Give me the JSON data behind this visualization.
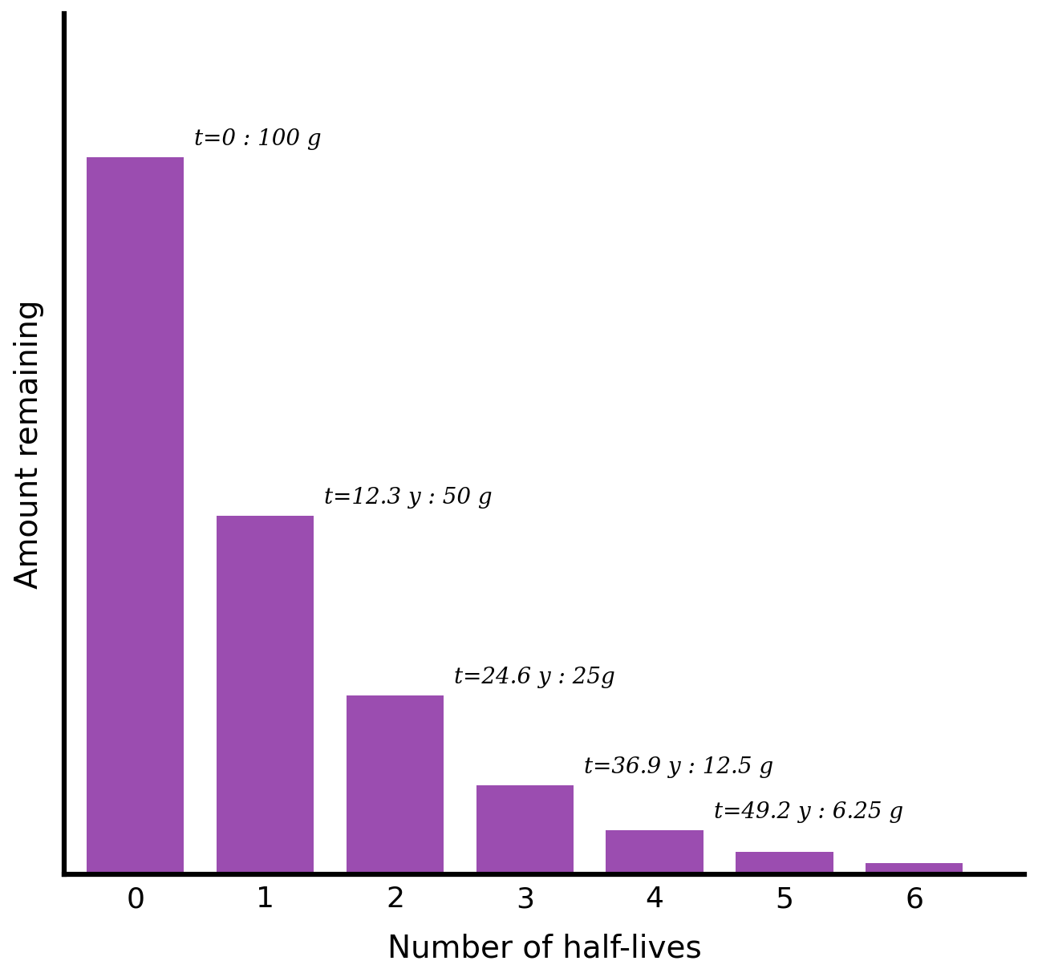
{
  "categories": [
    0,
    1,
    2,
    3,
    4,
    5,
    6
  ],
  "values": [
    100,
    50,
    25,
    12.5,
    6.25,
    3.125,
    1.5625
  ],
  "bar_color": "#9B4DB0",
  "bar_edgecolor": "#9B4DB0",
  "xlabel": "Number of half-lives",
  "ylabel": "Amount remaining",
  "xlabel_fontsize": 28,
  "ylabel_fontsize": 28,
  "tick_fontsize": 26,
  "annotation_fontsize": 20,
  "background_color": "#ffffff",
  "annotations": [
    {
      "x": 0,
      "label": "t=0 : 100 g",
      "value": 100
    },
    {
      "x": 1,
      "label": "t=12.3 y : 50 g",
      "value": 50
    },
    {
      "x": 2,
      "label": "t=24.6 y : 25g",
      "value": 25
    },
    {
      "x": 3,
      "label": "t=36.9 y : 12.5 g",
      "value": 12.5
    },
    {
      "x": 4,
      "label": "t=49.2 y : 6.25 g",
      "value": 6.25
    }
  ],
  "ylim": [
    0,
    120
  ],
  "xlim": [
    -0.55,
    6.85
  ],
  "bar_width": 0.75,
  "spine_linewidth": 4.5
}
